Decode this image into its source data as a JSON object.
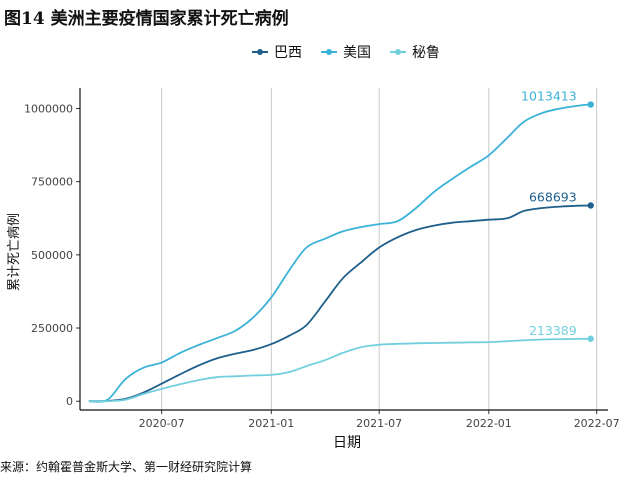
{
  "title": "图14 美洲主要疫情国家累计死亡病例",
  "source": "来源：约翰霍普金斯大学、第一财经研究院计算",
  "chart_data": {
    "type": "line",
    "xlabel": "日期",
    "ylabel": "累计死亡病例",
    "grid": "vertical",
    "legend_position": "top",
    "x_ticks": [
      "2020-07",
      "2021-01",
      "2021-07",
      "2022-01",
      "2022-07"
    ],
    "y_ticks": [
      0,
      250000,
      500000,
      750000,
      1000000
    ],
    "y_tick_labels": [
      "0",
      "250000",
      "500000",
      "750000",
      "1000000"
    ],
    "xlim": [
      "2020-02-15",
      "2022-07-20"
    ],
    "ylim": [
      -30000,
      1070000
    ],
    "x": [
      "2020-03-01",
      "2020-04-01",
      "2020-05-01",
      "2020-06-01",
      "2020-07-01",
      "2020-08-01",
      "2020-09-01",
      "2020-10-01",
      "2020-11-01",
      "2020-12-01",
      "2021-01-01",
      "2021-02-01",
      "2021-03-01",
      "2021-04-01",
      "2021-05-01",
      "2021-06-01",
      "2021-07-01",
      "2021-08-01",
      "2021-09-01",
      "2021-10-01",
      "2021-11-01",
      "2021-12-01",
      "2022-01-01",
      "2022-02-01",
      "2022-03-01",
      "2022-04-01",
      "2022-05-01",
      "2022-06-01",
      "2022-06-21"
    ],
    "series": [
      {
        "name": "巴西",
        "color": "#1f5f8b",
        "end_label": "668693",
        "values": [
          0,
          1000,
          8000,
          30000,
          60000,
          92000,
          122000,
          146000,
          162000,
          175000,
          195000,
          225000,
          260000,
          340000,
          420000,
          475000,
          525000,
          560000,
          585000,
          600000,
          610000,
          615000,
          620000,
          625000,
          650000,
          660000,
          665000,
          668000,
          668693
        ]
      },
      {
        "name": "美国",
        "color": "#3bb2d8",
        "end_label": "1013413",
        "values": [
          0,
          5000,
          75000,
          115000,
          132000,
          165000,
          192000,
          215000,
          240000,
          285000,
          355000,
          450000,
          525000,
          555000,
          580000,
          595000,
          605000,
          615000,
          660000,
          715000,
          760000,
          800000,
          840000,
          900000,
          955000,
          985000,
          1000000,
          1010000,
          1013413
        ]
      },
      {
        "name": "秘鲁",
        "color": "#72d0de",
        "end_label": "213389",
        "values": [
          0,
          0,
          5000,
          25000,
          42000,
          58000,
          72000,
          82000,
          85000,
          88000,
          90000,
          100000,
          120000,
          140000,
          165000,
          185000,
          193000,
          196000,
          198000,
          199000,
          200000,
          201000,
          202000,
          205000,
          208000,
          211000,
          212000,
          213000,
          213389
        ]
      }
    ]
  }
}
